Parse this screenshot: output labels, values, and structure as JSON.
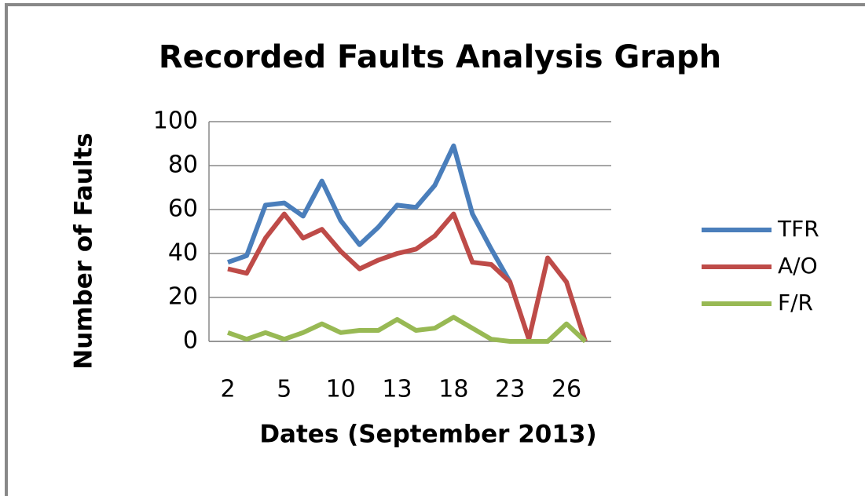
{
  "chart_data": {
    "type": "line",
    "title": "Recorded Faults Analysis Graph",
    "x_label": "Dates (September 2013)",
    "y_label": "Number of Faults",
    "categories": [
      "2",
      null,
      null,
      "5",
      null,
      null,
      "10",
      null,
      null,
      "13",
      null,
      null,
      "18",
      null,
      null,
      "23",
      null,
      null,
      "26",
      null
    ],
    "series": [
      {
        "name": "TFR",
        "color": "#4a7ebb",
        "values": [
          36,
          39,
          62,
          63,
          57,
          73,
          55,
          44,
          52,
          62,
          61,
          71,
          89,
          58,
          42,
          27,
          null,
          null,
          null,
          null
        ]
      },
      {
        "name": "A/O",
        "color": "#be4b48",
        "values": [
          33,
          31,
          47,
          58,
          47,
          51,
          41,
          33,
          37,
          40,
          42,
          48,
          58,
          36,
          35,
          27,
          1,
          38,
          27,
          0
        ]
      },
      {
        "name": "F/R",
        "color": "#98b954",
        "values": [
          4,
          1,
          4,
          1,
          4,
          8,
          4,
          5,
          5,
          10,
          5,
          6,
          11,
          6,
          1,
          0,
          0,
          0,
          8,
          0
        ]
      }
    ],
    "ylim": [
      0,
      100
    ],
    "yticks": [
      0,
      20,
      40,
      60,
      80,
      100
    ],
    "grid": true,
    "legend": "right"
  }
}
